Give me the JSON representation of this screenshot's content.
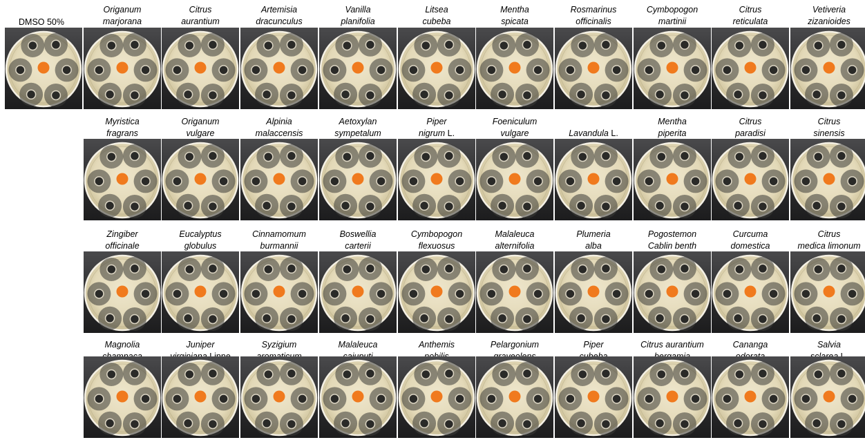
{
  "title": "",
  "control": {
    "label": "DMSO 50%"
  },
  "rows": [
    [
      {
        "l1": "Origanum",
        "l2": "marjorana"
      },
      {
        "l1": "Citrus",
        "l2": "aurantium"
      },
      {
        "l1": "Artemisia",
        "l2": "dracunculus"
      },
      {
        "l1": "Vanilla",
        "l2": "planifolia"
      },
      {
        "l1": "Litsea",
        "l2": "cubeba"
      },
      {
        "l1": "Mentha",
        "l2": "spicata"
      },
      {
        "l1": "Rosmarinus",
        "l2": "officinalis"
      },
      {
        "l1": "Cymbopogon",
        "l2": "martinii"
      },
      {
        "l1": "Citrus",
        "l2": "reticulata"
      },
      {
        "l1": "Vetiveria",
        "l2": "zizanioides"
      }
    ],
    [
      {
        "l1": "Myristica",
        "l2": "fragrans"
      },
      {
        "l1": "Origanum",
        "l2": "vulgare"
      },
      {
        "l1": "Alpinia",
        "l2": "malaccensis"
      },
      {
        "l1": "Aetoxylan",
        "l2": "sympetalum"
      },
      {
        "l1": "Piper",
        "l2": "nigrum",
        "l2_suffix": "L."
      },
      {
        "l1": "Foeniculum",
        "l2": "vulgare"
      },
      {
        "l1": "",
        "l2": "Lavandula",
        "l2_suffix": "L."
      },
      {
        "l1": "Mentha",
        "l2": "piperita"
      },
      {
        "l1": "Citrus",
        "l2": "paradisi"
      },
      {
        "l1": "Citrus",
        "l2": "sinensis"
      }
    ],
    [
      {
        "l1": "Zingiber",
        "l2": "officinale"
      },
      {
        "l1": "Eucalyptus",
        "l2": "globulus"
      },
      {
        "l1": "Cinnamomum",
        "l2": "burmannii"
      },
      {
        "l1": "Boswellia",
        "l2": "carterii"
      },
      {
        "l1": "Cymbopogon",
        "l2": "flexuosus"
      },
      {
        "l1": "Malaleuca",
        "l2": "alternifolia"
      },
      {
        "l1": "Plumeria",
        "l2": "alba"
      },
      {
        "l1": "Pogostemon",
        "l2": "Cablin benth"
      },
      {
        "l1": "Curcuma",
        "l2": "domestica"
      },
      {
        "l1": "Citrus",
        "l2": "medica limonum"
      }
    ],
    [
      {
        "l1": "Magnolia",
        "l2": "champaca"
      },
      {
        "l1": "Juniper",
        "l2": "virginiana",
        "l2_suffix": "Linne"
      },
      {
        "l1": "Syzigium",
        "l2": "aromaticum"
      },
      {
        "l1": "Malaleuca",
        "l2": "cajuputi"
      },
      {
        "l1": "Anthemis",
        "l2": "nobilis"
      },
      {
        "l1": "Pelargonium",
        "l2": "graveolens"
      },
      {
        "l1": "Piper",
        "l2": "cubeba"
      },
      {
        "l1": "Citrus aurantium",
        "l2": "bergamia"
      },
      {
        "l1": "Cananga",
        "l2": "odorata"
      },
      {
        "l1": "Salvia",
        "l2": "sclarea",
        "l2_suffix": "L."
      }
    ]
  ],
  "colors": {
    "disc": "#f07a1e",
    "agar": "#e3d9b8",
    "backdrop": "#2f2f31"
  }
}
